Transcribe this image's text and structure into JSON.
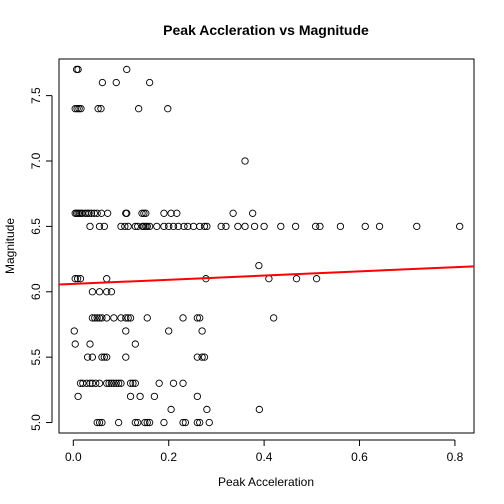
{
  "chart_data": {
    "type": "scatter",
    "title": "Peak Accleration vs Magnitude",
    "xlabel": "Peak Acceleration",
    "ylabel": "Magnitude",
    "xlim": [
      -0.03,
      0.84
    ],
    "ylim": [
      4.92,
      7.78
    ],
    "xticks": [
      0.0,
      0.2,
      0.4,
      0.6,
      0.8
    ],
    "xtick_labels": [
      "0.0",
      "0.2",
      "0.4",
      "0.6",
      "0.8"
    ],
    "yticks": [
      5.0,
      5.5,
      6.0,
      6.5,
      7.0,
      7.5
    ],
    "ytick_labels": [
      "5.0",
      "5.5",
      "6.0",
      "6.5",
      "7.0",
      "7.5"
    ],
    "grid": false,
    "point_color": "#000000",
    "fit_color": "#ff0000",
    "fit_line": {
      "intercept": 6.06,
      "slope": 0.16
    },
    "points": [
      [
        0.007,
        7.7
      ],
      [
        0.01,
        7.7
      ],
      [
        0.112,
        7.7
      ],
      [
        0.061,
        7.6
      ],
      [
        0.09,
        7.6
      ],
      [
        0.16,
        7.6
      ],
      [
        0.004,
        7.4
      ],
      [
        0.008,
        7.4
      ],
      [
        0.012,
        7.4
      ],
      [
        0.016,
        7.4
      ],
      [
        0.052,
        7.4
      ],
      [
        0.058,
        7.4
      ],
      [
        0.137,
        7.4
      ],
      [
        0.198,
        7.4
      ],
      [
        0.36,
        7.0
      ],
      [
        0.004,
        6.6
      ],
      [
        0.007,
        6.6
      ],
      [
        0.01,
        6.6
      ],
      [
        0.013,
        6.6
      ],
      [
        0.016,
        6.6
      ],
      [
        0.019,
        6.6
      ],
      [
        0.025,
        6.6
      ],
      [
        0.029,
        6.6
      ],
      [
        0.033,
        6.6
      ],
      [
        0.038,
        6.6
      ],
      [
        0.044,
        6.6
      ],
      [
        0.05,
        6.6
      ],
      [
        0.059,
        6.6
      ],
      [
        0.072,
        6.6
      ],
      [
        0.11,
        6.6
      ],
      [
        0.112,
        6.6
      ],
      [
        0.144,
        6.6
      ],
      [
        0.148,
        6.6
      ],
      [
        0.152,
        6.6
      ],
      [
        0.19,
        6.6
      ],
      [
        0.205,
        6.6
      ],
      [
        0.217,
        6.6
      ],
      [
        0.335,
        6.6
      ],
      [
        0.376,
        6.6
      ],
      [
        0.035,
        6.5
      ],
      [
        0.055,
        6.5
      ],
      [
        0.065,
        6.5
      ],
      [
        0.1,
        6.5
      ],
      [
        0.108,
        6.5
      ],
      [
        0.115,
        6.5
      ],
      [
        0.13,
        6.5
      ],
      [
        0.135,
        6.5
      ],
      [
        0.145,
        6.5
      ],
      [
        0.148,
        6.5
      ],
      [
        0.152,
        6.5
      ],
      [
        0.155,
        6.5
      ],
      [
        0.16,
        6.5
      ],
      [
        0.175,
        6.5
      ],
      [
        0.19,
        6.5
      ],
      [
        0.2,
        6.5
      ],
      [
        0.21,
        6.5
      ],
      [
        0.22,
        6.5
      ],
      [
        0.232,
        6.5
      ],
      [
        0.24,
        6.5
      ],
      [
        0.252,
        6.5
      ],
      [
        0.265,
        6.5
      ],
      [
        0.275,
        6.5
      ],
      [
        0.28,
        6.5
      ],
      [
        0.31,
        6.5
      ],
      [
        0.32,
        6.5
      ],
      [
        0.345,
        6.5
      ],
      [
        0.36,
        6.5
      ],
      [
        0.38,
        6.5
      ],
      [
        0.4,
        6.5
      ],
      [
        0.435,
        6.5
      ],
      [
        0.466,
        6.5
      ],
      [
        0.508,
        6.5
      ],
      [
        0.517,
        6.5
      ],
      [
        0.56,
        6.5
      ],
      [
        0.612,
        6.5
      ],
      [
        0.642,
        6.5
      ],
      [
        0.72,
        6.5
      ],
      [
        0.81,
        6.5
      ],
      [
        0.389,
        6.2
      ],
      [
        0.004,
        6.1
      ],
      [
        0.009,
        6.1
      ],
      [
        0.015,
        6.1
      ],
      [
        0.07,
        6.1
      ],
      [
        0.278,
        6.1
      ],
      [
        0.41,
        6.1
      ],
      [
        0.468,
        6.1
      ],
      [
        0.51,
        6.1
      ],
      [
        0.04,
        6.0
      ],
      [
        0.055,
        6.0
      ],
      [
        0.07,
        6.0
      ],
      [
        0.08,
        6.0
      ],
      [
        0.04,
        5.8
      ],
      [
        0.045,
        5.8
      ],
      [
        0.05,
        5.8
      ],
      [
        0.055,
        5.8
      ],
      [
        0.06,
        5.8
      ],
      [
        0.07,
        5.8
      ],
      [
        0.085,
        5.8
      ],
      [
        0.1,
        5.8
      ],
      [
        0.11,
        5.8
      ],
      [
        0.115,
        5.8
      ],
      [
        0.12,
        5.8
      ],
      [
        0.155,
        5.8
      ],
      [
        0.23,
        5.8
      ],
      [
        0.26,
        5.8
      ],
      [
        0.265,
        5.8
      ],
      [
        0.42,
        5.8
      ],
      [
        0.002,
        5.7
      ],
      [
        0.11,
        5.7
      ],
      [
        0.2,
        5.7
      ],
      [
        0.27,
        5.7
      ],
      [
        0.004,
        5.6
      ],
      [
        0.035,
        5.6
      ],
      [
        0.13,
        5.6
      ],
      [
        0.03,
        5.5
      ],
      [
        0.04,
        5.5
      ],
      [
        0.06,
        5.5
      ],
      [
        0.065,
        5.5
      ],
      [
        0.07,
        5.5
      ],
      [
        0.11,
        5.5
      ],
      [
        0.26,
        5.5
      ],
      [
        0.27,
        5.5
      ],
      [
        0.275,
        5.5
      ],
      [
        0.015,
        5.3
      ],
      [
        0.02,
        5.3
      ],
      [
        0.028,
        5.3
      ],
      [
        0.035,
        5.3
      ],
      [
        0.04,
        5.3
      ],
      [
        0.047,
        5.3
      ],
      [
        0.055,
        5.3
      ],
      [
        0.07,
        5.3
      ],
      [
        0.075,
        5.3
      ],
      [
        0.08,
        5.3
      ],
      [
        0.085,
        5.3
      ],
      [
        0.09,
        5.3
      ],
      [
        0.095,
        5.3
      ],
      [
        0.1,
        5.3
      ],
      [
        0.12,
        5.3
      ],
      [
        0.125,
        5.3
      ],
      [
        0.13,
        5.3
      ],
      [
        0.18,
        5.3
      ],
      [
        0.21,
        5.3
      ],
      [
        0.23,
        5.3
      ],
      [
        0.01,
        5.2
      ],
      [
        0.12,
        5.2
      ],
      [
        0.14,
        5.2
      ],
      [
        0.17,
        5.2
      ],
      [
        0.26,
        5.2
      ],
      [
        0.205,
        5.1
      ],
      [
        0.28,
        5.1
      ],
      [
        0.39,
        5.1
      ],
      [
        0.05,
        5.0
      ],
      [
        0.055,
        5.0
      ],
      [
        0.06,
        5.0
      ],
      [
        0.095,
        5.0
      ],
      [
        0.13,
        5.0
      ],
      [
        0.135,
        5.0
      ],
      [
        0.15,
        5.0
      ],
      [
        0.155,
        5.0
      ],
      [
        0.16,
        5.0
      ],
      [
        0.19,
        5.0
      ],
      [
        0.23,
        5.0
      ],
      [
        0.235,
        5.0
      ],
      [
        0.26,
        5.0
      ],
      [
        0.265,
        5.0
      ],
      [
        0.285,
        5.0
      ]
    ]
  }
}
